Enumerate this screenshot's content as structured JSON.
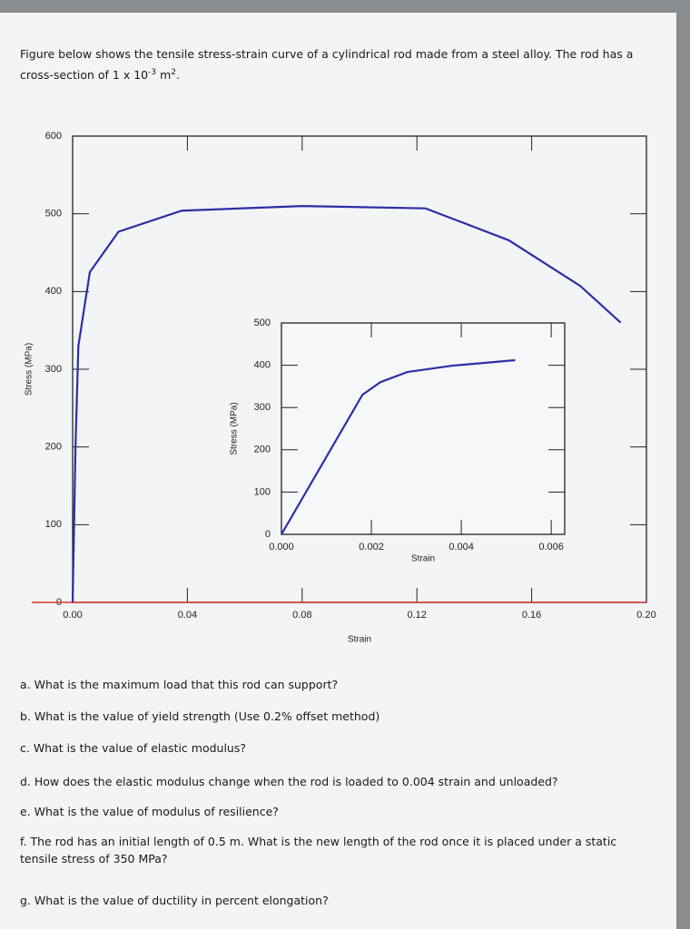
{
  "intro": {
    "text": "Figure below shows the tensile stress-strain curve of a cylindrical rod made from a steel alloy. The rod has a cross-section of 1 x 10",
    "exp1": "-3",
    "unit": " m",
    "exp2": "2",
    "end": "."
  },
  "chart_data": [
    {
      "type": "line",
      "xlabel": "Strain",
      "ylabel": "Stress (MPa)",
      "x": [
        0,
        0.001,
        0.002,
        0.006,
        0.016,
        0.038,
        0.08,
        0.123,
        0.152,
        0.177,
        0.191
      ],
      "series": [
        {
          "name": "Stress",
          "color": "#2b2fa6",
          "values": [
            0,
            200,
            330,
            425,
            477,
            504,
            510,
            507,
            466,
            407,
            360
          ]
        }
      ],
      "xlim": [
        0,
        0.2
      ],
      "ylim": [
        0,
        600
      ],
      "xticks": [
        {
          "value": 0,
          "label": "0.00"
        },
        0.04,
        0.08,
        0.12,
        0.16,
        {
          "value": 0.2,
          "label": "0.20"
        }
      ],
      "yticks": [
        0,
        100,
        200,
        300,
        400,
        500,
        600
      ],
      "grid": false
    },
    {
      "type": "line",
      "xlabel": "Strain",
      "ylabel": "Stress (MPa)",
      "x": [
        0,
        0.0018,
        0.0022,
        0.0028,
        0.0038,
        0.0052
      ],
      "series": [
        {
          "name": "Stress",
          "color": "#2b2fa6",
          "values": [
            0,
            330,
            360,
            384,
            399,
            412
          ]
        }
      ],
      "xlim": [
        0,
        0.0063
      ],
      "ylim": [
        0,
        500
      ],
      "xticks": [
        {
          "value": 0,
          "label": "0.000"
        },
        0.002,
        0.004,
        0.006
      ],
      "yticks": [
        0,
        100,
        200,
        300,
        400,
        500
      ],
      "grid": false
    }
  ],
  "questions": [
    "a. What is the maximum load that this rod can support?",
    "b. What is the value of yield strength (Use 0.2% offset method)",
    "c. What is the value of elastic modulus?",
    "d. How does the elastic modulus change when the rod is loaded to 0.004 strain and unloaded?",
    "e. What is the value of modulus of resilience?",
    "f. The rod has an initial length of 0.5 m. What is the new length of the rod once it is placed under a static tensile stress of 350 MPa?",
    "g. What is the value of ductility in percent elongation?"
  ]
}
